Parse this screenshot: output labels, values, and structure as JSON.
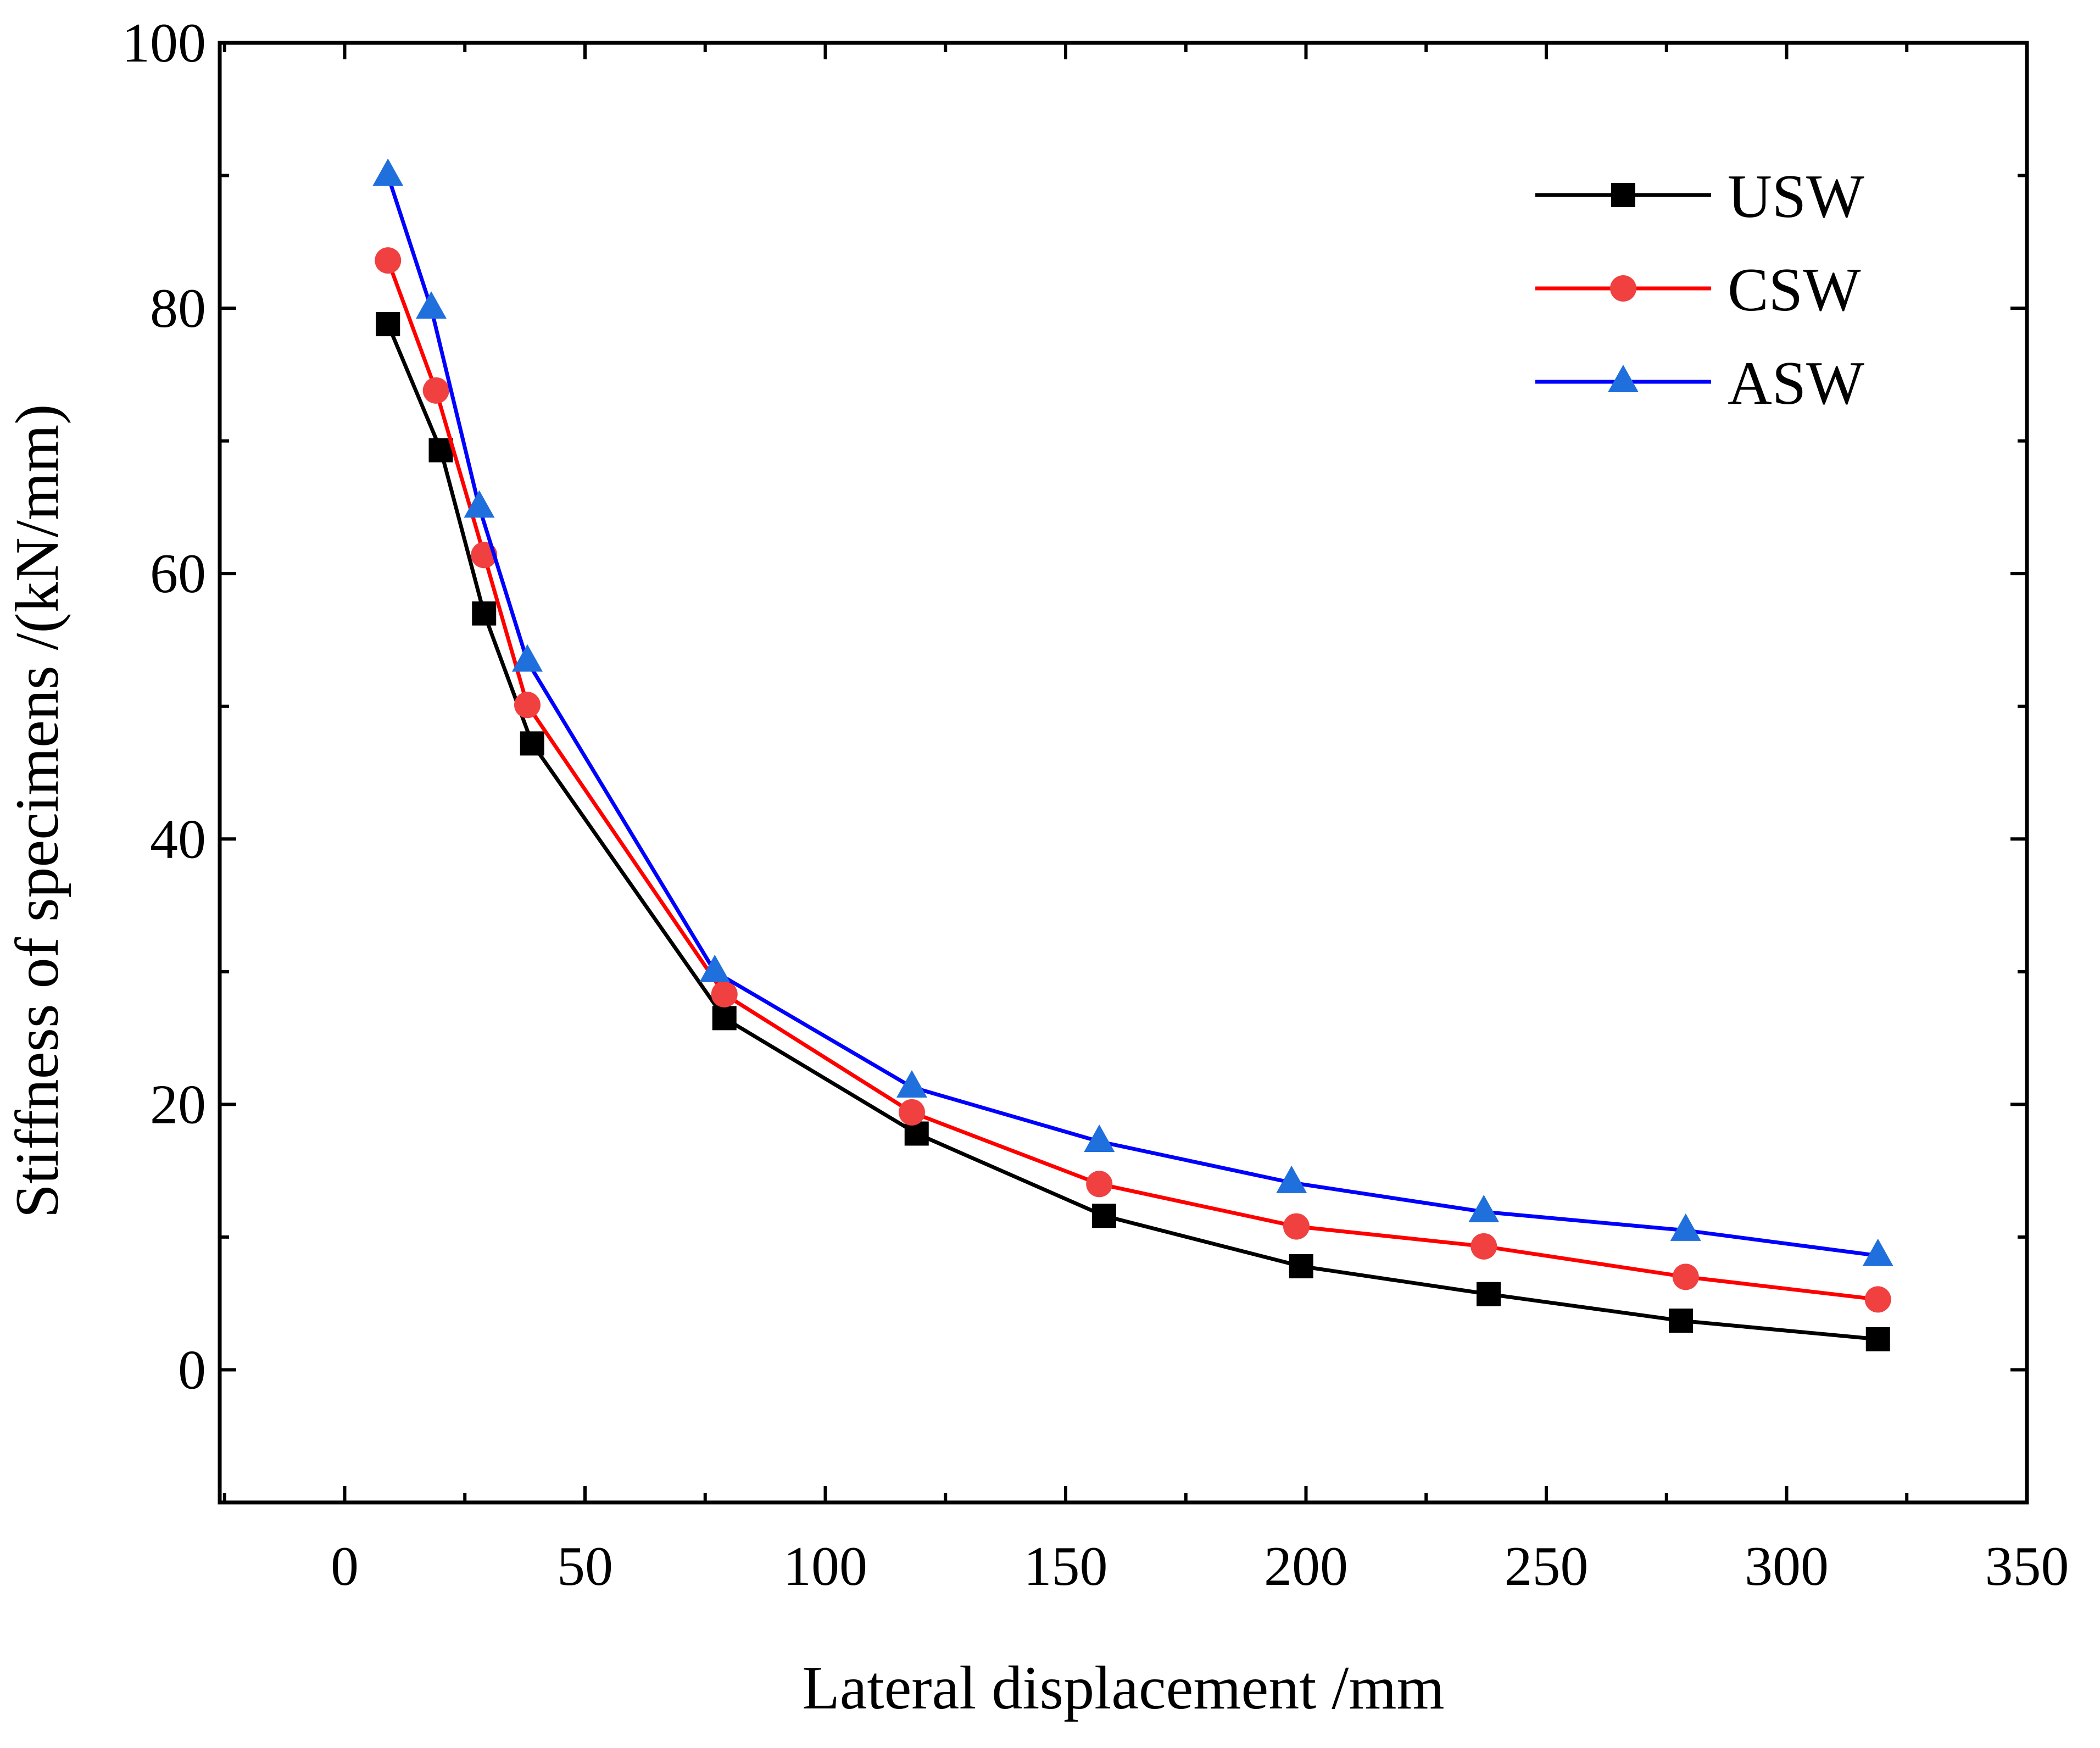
{
  "chart_data": {
    "type": "line",
    "title": "",
    "xlabel": "Lateral displacement /mm",
    "ylabel": "Stiffness of specimens /(kN/mm)",
    "xlim": [
      -26,
      350
    ],
    "ylim": [
      -10,
      100
    ],
    "xticks": [
      0,
      50,
      100,
      150,
      200,
      250,
      300,
      350
    ],
    "yticks": [
      0,
      20,
      40,
      60,
      80,
      100
    ],
    "x_tick_labels": [
      "0",
      "50",
      "100",
      "150",
      "200",
      "250",
      "300",
      "350"
    ],
    "y_tick_labels": [
      "0",
      "20",
      "40",
      "60",
      "80",
      "100"
    ],
    "grid": false,
    "legend_position": "top-right",
    "series": [
      {
        "name": "USW",
        "color": "#000000",
        "marker": "square",
        "x": [
          9,
          20,
          29,
          39,
          79,
          119,
          158,
          199,
          238,
          278,
          319
        ],
        "y": [
          78.8,
          69.3,
          57.0,
          47.2,
          26.5,
          17.8,
          11.6,
          7.8,
          5.7,
          3.7,
          2.3
        ]
      },
      {
        "name": "CSW",
        "color": "#ff0000",
        "marker": "circle",
        "x": [
          9,
          19,
          29,
          38,
          79,
          118,
          157,
          198,
          237,
          279,
          319
        ],
        "y": [
          83.6,
          73.8,
          61.4,
          50.1,
          28.3,
          19.4,
          14.0,
          10.8,
          9.3,
          7.0,
          5.3
        ]
      },
      {
        "name": "ASW",
        "color": "#0000ff",
        "marker": "triangle",
        "marker_color": "#1f6fdc",
        "x": [
          9,
          18,
          28,
          38,
          77,
          118,
          157,
          197,
          237,
          279,
          319
        ],
        "y": [
          90.0,
          80.0,
          65.0,
          53.4,
          30.0,
          21.3,
          17.2,
          14.1,
          11.9,
          10.5,
          8.6
        ]
      }
    ]
  }
}
